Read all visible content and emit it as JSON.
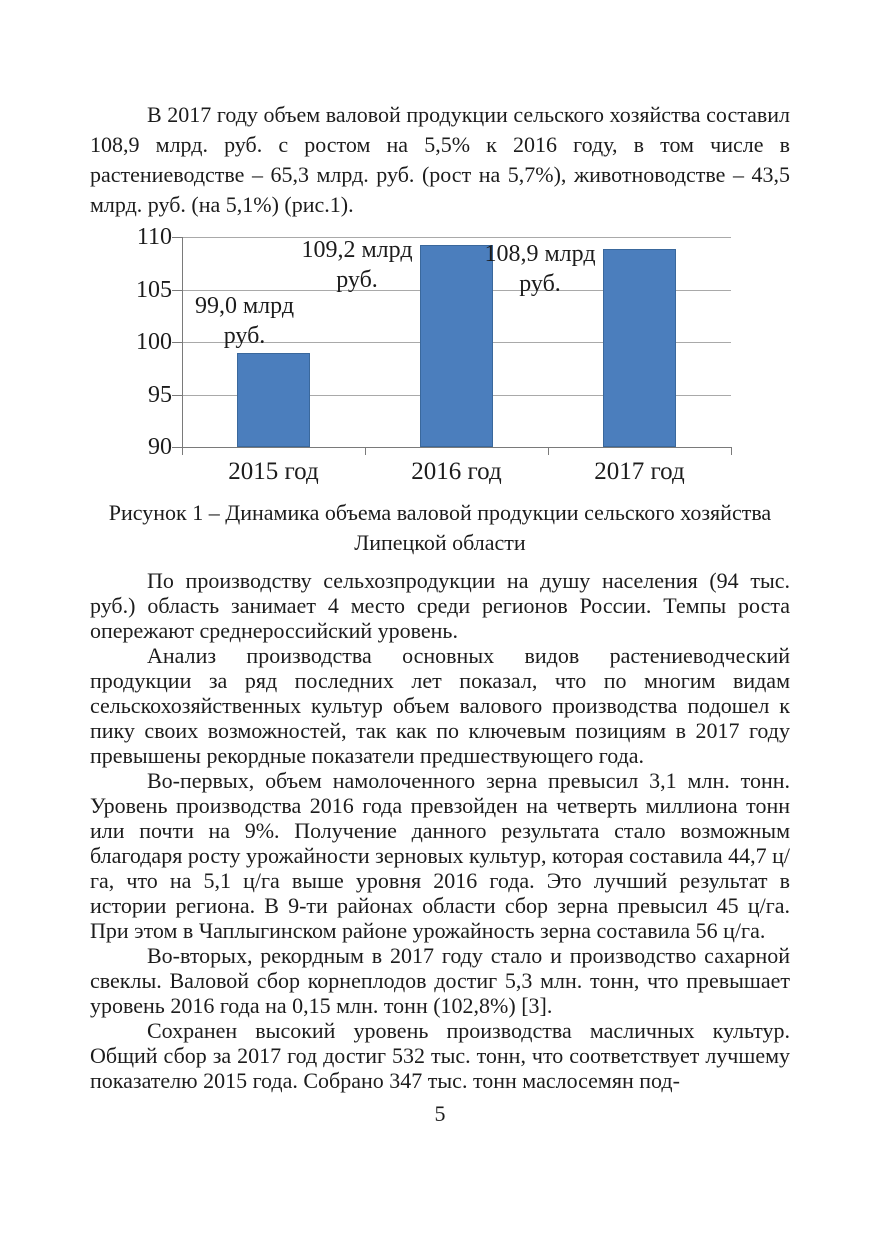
{
  "page": {
    "number": "5"
  },
  "colors": {
    "text": "#1c1c1c",
    "page_background": "#ffffff"
  },
  "content": {
    "intro_paragraph": "В 2017 году объем валовой продукции сельского хозяйства составил 108,9 млрд. руб. с ростом на 5,5% к 2016 году, в том числе в растениеводстве – 65,3 млрд. руб. (рост на 5,7%), животноводстве – 43,5 млрд. руб. (на 5,1%) (рис.1).",
    "figure": {
      "caption": "Рисунок 1 – Динамика объема валовой продукции сельского хозяйства Липецкой области"
    },
    "body_paragraphs": [
      "По производству сельхозпродукции на душу населения (94 тыс. руб.) область занимает 4 место среди регионов России. Темпы роста опережают среднероссийский уровень.",
      "Анализ производства основных видов растениеводческий продукции за ряд последних лет показал, что по многим видам сельскохозяйственных культур объем валового производства подошел к пику своих возможностей, так как по ключевым позициям в 2017 году превышены рекордные показатели предшествующего года.",
      "Во-первых, объем намолоченного зерна превысил 3,1 млн. тонн. Уровень производства 2016 года превзойден на четверть миллиона тонн или почти на 9%. Получение данного результата стало возможным благодаря росту урожайности зерновых культур, которая составила 44,7 ц/га, что на 5,1 ц/га выше уровня 2016 года. Это лучший результат в истории региона. В 9-ти районах области сбор зерна превысил 45 ц/га. При этом в Чаплыгинском районе урожайность зерна составила 56 ц/га.",
      "Во-вторых, рекордным в 2017 году стало и производство сахарной свеклы. Валовой сбор корнеплодов достиг 5,3 млн. тонн, что превышает уровень 2016 года на 0,15 млн. тонн (102,8%) [3].",
      "Сохранен высокий уровень производства масличных культур. Общий сбор за 2017 год достиг 532 тыс. тонн, что соответствует лучшему показателю 2015 года. Собрано 347 тыс. тонн маслосемян под-"
    ]
  },
  "chart_data": {
    "type": "bar",
    "title": "",
    "xlabel": "",
    "ylabel": "",
    "categories": [
      "2015 год",
      "2016 год",
      "2017 год"
    ],
    "values": [
      99.0,
      109.2,
      108.9
    ],
    "data_labels": [
      "99,0 млрд\nруб.",
      "109,2 млрд\nруб.",
      "108,9 млрд\nруб."
    ],
    "label_placement": [
      "above",
      "left",
      "left"
    ],
    "ylim": [
      90,
      110
    ],
    "yticks": [
      90,
      95,
      100,
      105,
      110
    ],
    "grid": true,
    "legend": false,
    "bar_color": "#4b7ebd",
    "bar_border_color": "#3a689c",
    "gridline_color": "#a9a9a9",
    "axis_color": "#7a7a7a"
  }
}
